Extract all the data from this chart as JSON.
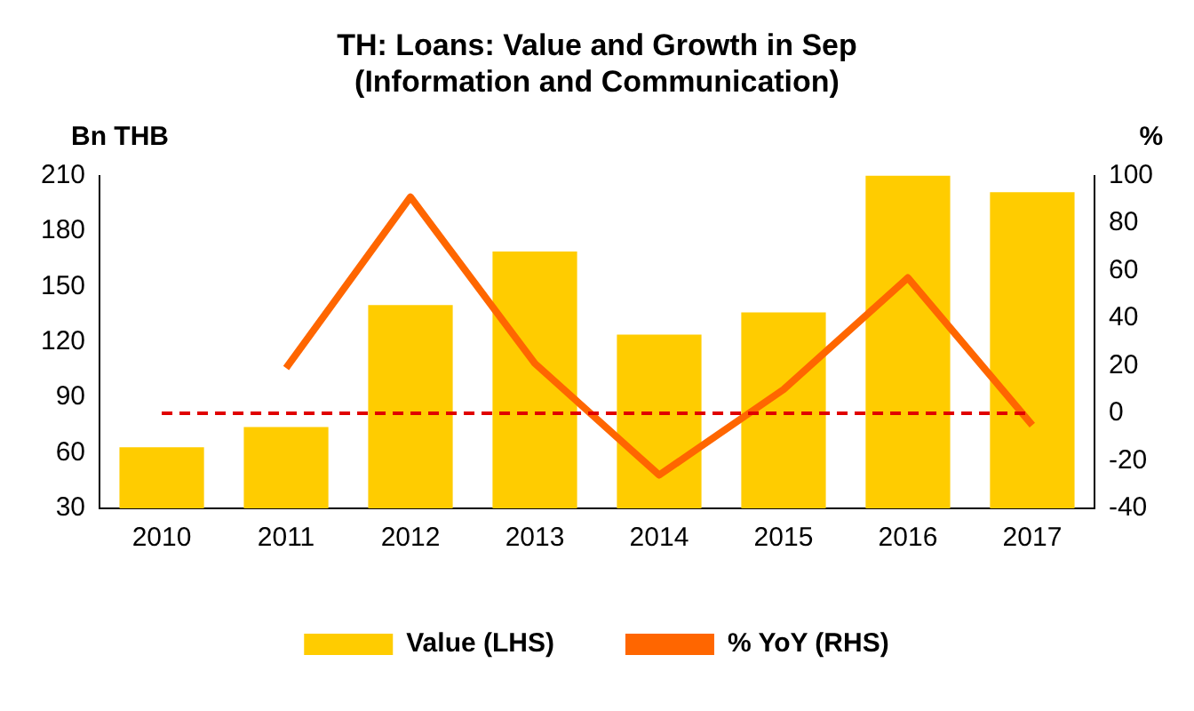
{
  "chart_data": {
    "type": "bar",
    "title": "TH: Loans: Value and Growth in Sep\n(Information and Communication)",
    "ylabel": "Bn THB",
    "y2label": "%",
    "categories": [
      "2010",
      "2011",
      "2012",
      "2013",
      "2014",
      "2015",
      "2016",
      "2017"
    ],
    "series": [
      {
        "name": "Value (LHS)",
        "color": "#ffcc00",
        "values": [
          63,
          74,
          140,
          169,
          124,
          136,
          210,
          201
        ]
      },
      {
        "name": "% YoY (RHS)",
        "type": "line",
        "axis": "y2",
        "color": "#ff6600",
        "values": [
          null,
          19,
          91,
          21,
          -26,
          10,
          57,
          -5
        ]
      }
    ],
    "ylim": [
      30,
      210
    ],
    "yticks": [
      30,
      60,
      90,
      120,
      150,
      180,
      210
    ],
    "y2lim": [
      -40,
      100
    ],
    "y2ticks": [
      -40,
      -20,
      0,
      20,
      40,
      60,
      80,
      100
    ],
    "ref_lines": [
      {
        "axis": "y2",
        "value": 0,
        "color": "#e00000",
        "line_style": "dashed"
      }
    ],
    "grid": false,
    "legend": "bottom",
    "marker": "none"
  }
}
